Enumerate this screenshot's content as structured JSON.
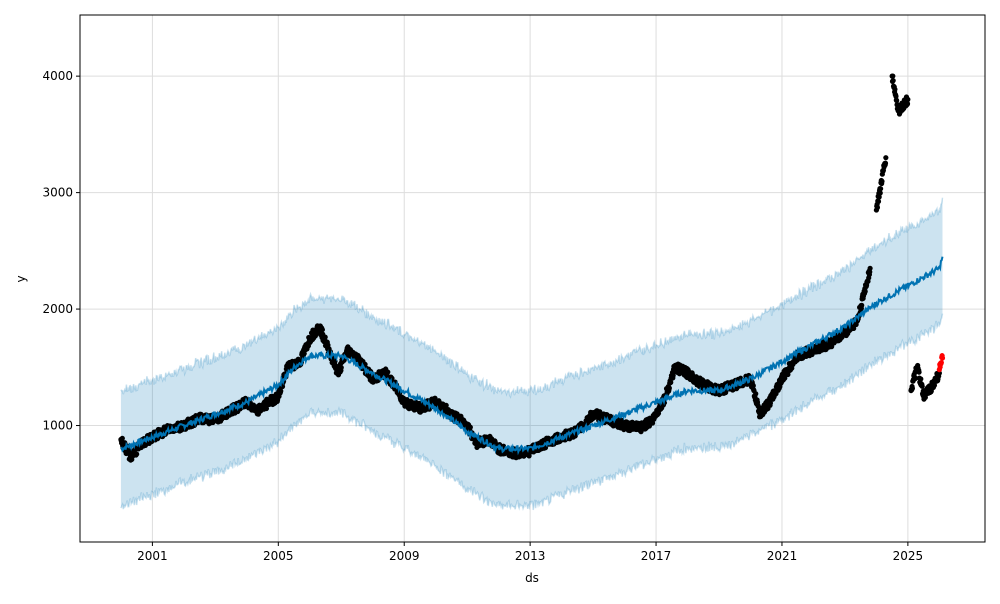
{
  "chart_data": {
    "type": "scatter",
    "title": "",
    "xlabel": "ds",
    "ylabel": "y",
    "xlim": [
      1998.7,
      2027.45
    ],
    "ylim": [
      0,
      4525
    ],
    "grid": true,
    "x_ticks": [
      2001,
      2005,
      2009,
      2013,
      2017,
      2021,
      2025
    ],
    "x_tick_labels": [
      "2001",
      "2005",
      "2009",
      "2013",
      "2017",
      "2021",
      "2025"
    ],
    "y_ticks": [
      1000,
      2000,
      3000,
      4000
    ],
    "y_tick_labels": [
      "1000",
      "2000",
      "3000",
      "4000"
    ],
    "colors": {
      "actual": "#000000",
      "recent": "#ff0000",
      "forecast": "#0072B2",
      "interval": "#0072B2"
    },
    "series": [
      {
        "name": "actual",
        "kind": "points",
        "points": [
          [
            2000.0,
            880
          ],
          [
            2000.3,
            730
          ],
          [
            2000.7,
            850
          ],
          [
            2001.0,
            900
          ],
          [
            2001.5,
            970
          ],
          [
            2002.0,
            1000
          ],
          [
            2002.5,
            1060
          ],
          [
            2003.0,
            1050
          ],
          [
            2003.5,
            1130
          ],
          [
            2004.0,
            1200
          ],
          [
            2004.3,
            1120
          ],
          [
            2004.7,
            1200
          ],
          [
            2005.0,
            1250
          ],
          [
            2005.3,
            1500
          ],
          [
            2005.7,
            1550
          ],
          [
            2006.0,
            1750
          ],
          [
            2006.3,
            1850
          ],
          [
            2006.6,
            1650
          ],
          [
            2006.9,
            1450
          ],
          [
            2007.2,
            1650
          ],
          [
            2007.6,
            1550
          ],
          [
            2008.0,
            1400
          ],
          [
            2008.4,
            1450
          ],
          [
            2008.8,
            1300
          ],
          [
            2009.0,
            1200
          ],
          [
            2009.5,
            1150
          ],
          [
            2010.0,
            1200
          ],
          [
            2010.5,
            1100
          ],
          [
            2011.0,
            1000
          ],
          [
            2011.3,
            850
          ],
          [
            2011.7,
            880
          ],
          [
            2012.0,
            800
          ],
          [
            2012.5,
            760
          ],
          [
            2013.0,
            780
          ],
          [
            2013.5,
            850
          ],
          [
            2014.0,
            900
          ],
          [
            2014.5,
            950
          ],
          [
            2015.0,
            1100
          ],
          [
            2015.5,
            1050
          ],
          [
            2016.0,
            1000
          ],
          [
            2016.5,
            980
          ],
          [
            2016.9,
            1050
          ],
          [
            2017.3,
            1250
          ],
          [
            2017.6,
            1500
          ],
          [
            2018.0,
            1450
          ],
          [
            2018.5,
            1350
          ],
          [
            2019.0,
            1300
          ],
          [
            2019.5,
            1350
          ],
          [
            2020.0,
            1400
          ],
          [
            2020.3,
            1100
          ],
          [
            2020.6,
            1200
          ],
          [
            2021.0,
            1400
          ],
          [
            2021.5,
            1600
          ],
          [
            2022.0,
            1650
          ],
          [
            2022.5,
            1700
          ],
          [
            2023.0,
            1800
          ],
          [
            2023.4,
            1900
          ],
          [
            2023.8,
            2350
          ],
          [
            2024.0,
            2850
          ],
          [
            2024.3,
            3300
          ],
          [
            2024.5,
            4000
          ],
          [
            2024.7,
            3700
          ],
          [
            2025.0,
            3800
          ],
          [
            2025.1,
            1300
          ],
          [
            2025.3,
            1500
          ],
          [
            2025.5,
            1250
          ],
          [
            2025.8,
            1350
          ],
          [
            2026.0,
            1450
          ]
        ]
      },
      {
        "name": "recent",
        "kind": "points",
        "points": [
          [
            2026.0,
            1480
          ],
          [
            2026.05,
            1530
          ],
          [
            2026.1,
            1580
          ]
        ]
      },
      {
        "name": "yhat",
        "kind": "line",
        "points": [
          [
            2000.0,
            800
          ],
          [
            2001.0,
            900
          ],
          [
            2002.0,
            1000
          ],
          [
            2003.0,
            1100
          ],
          [
            2004.0,
            1200
          ],
          [
            2005.0,
            1350
          ],
          [
            2005.5,
            1500
          ],
          [
            2006.0,
            1600
          ],
          [
            2007.0,
            1600
          ],
          [
            2008.0,
            1450
          ],
          [
            2009.0,
            1300
          ],
          [
            2010.0,
            1150
          ],
          [
            2011.0,
            950
          ],
          [
            2012.0,
            800
          ],
          [
            2013.0,
            800
          ],
          [
            2014.0,
            900
          ],
          [
            2015.0,
            1000
          ],
          [
            2016.0,
            1100
          ],
          [
            2017.0,
            1200
          ],
          [
            2018.0,
            1300
          ],
          [
            2019.0,
            1300
          ],
          [
            2020.0,
            1400
          ],
          [
            2021.0,
            1550
          ],
          [
            2022.0,
            1700
          ],
          [
            2023.0,
            1850
          ],
          [
            2024.0,
            2050
          ],
          [
            2025.0,
            2200
          ],
          [
            2026.0,
            2350
          ],
          [
            2026.1,
            2450
          ]
        ]
      },
      {
        "name": "uncertainty_interval",
        "kind": "band",
        "half_width": 490
      }
    ]
  }
}
